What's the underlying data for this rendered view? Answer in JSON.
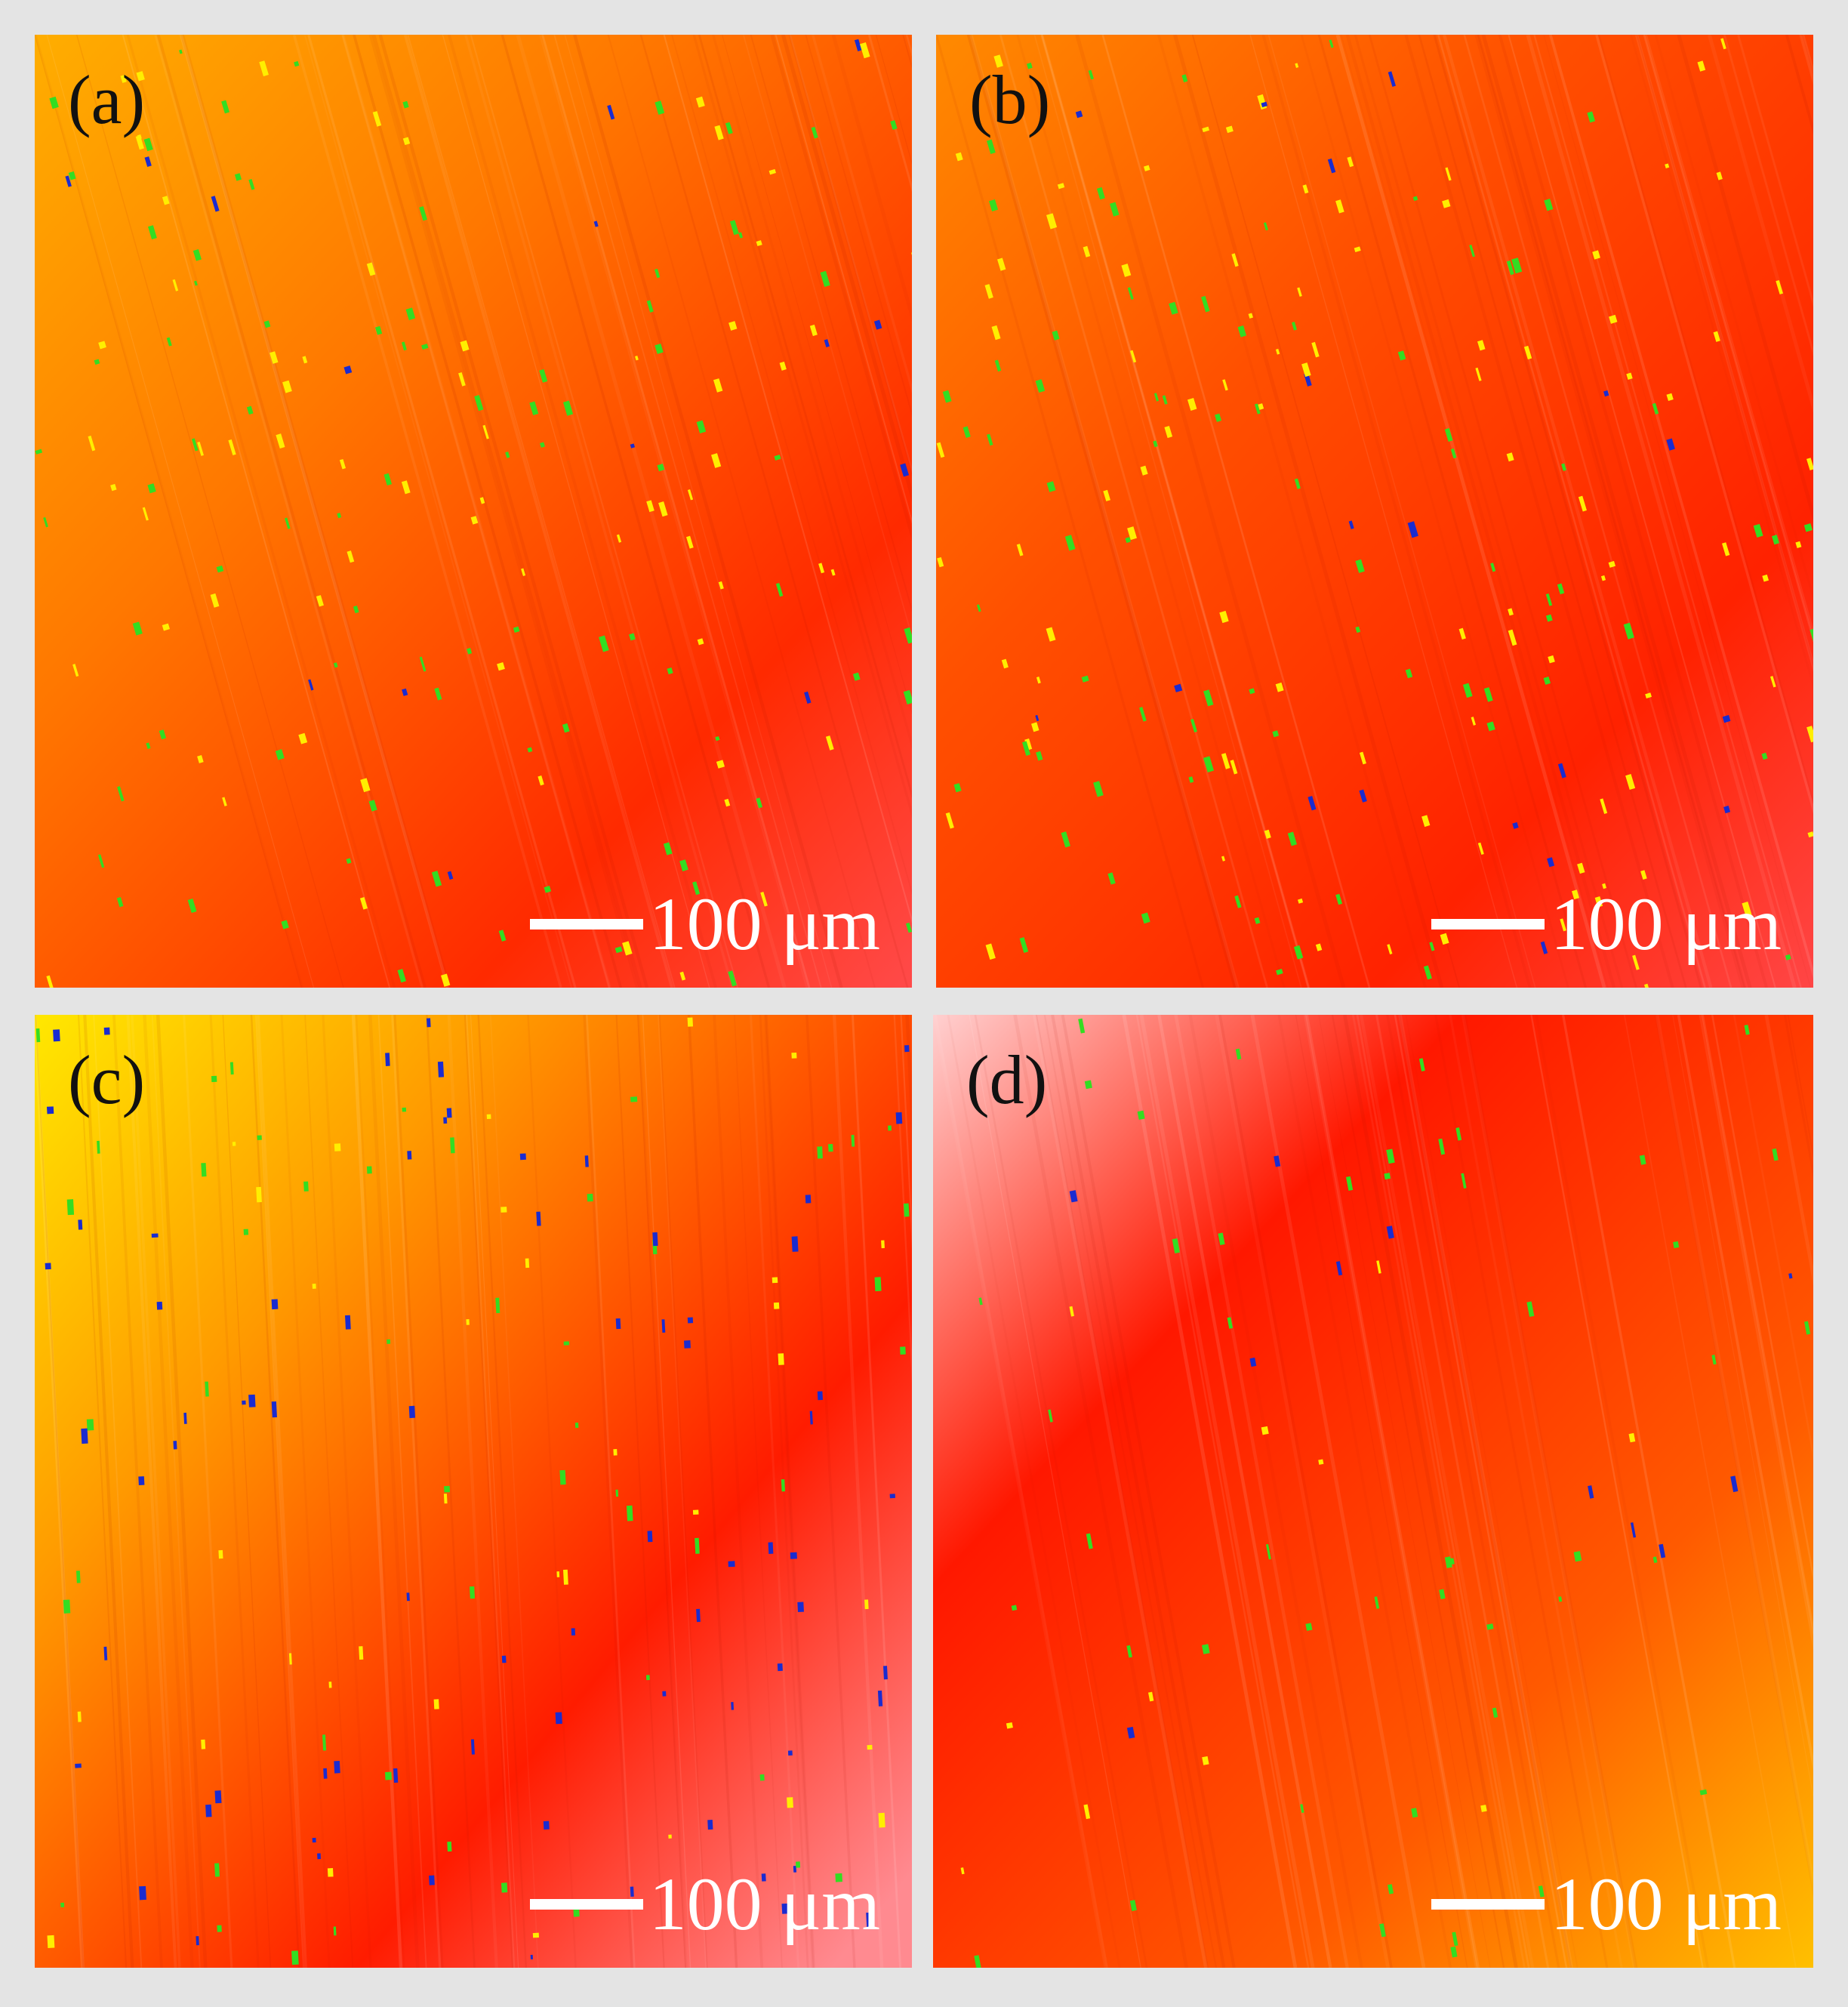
{
  "figure": {
    "panels": [
      {
        "id": "a",
        "label": "(a)",
        "scale_text": "100 μm",
        "gradient": [
          "#ffae00",
          "#ff7800",
          "#ff2a00",
          "#ff1a10"
        ]
      },
      {
        "id": "b",
        "label": "(b)",
        "scale_text": "100 μm",
        "gradient": [
          "#ff8a00",
          "#ff5a00",
          "#ff2200",
          "#ff3a3a"
        ]
      },
      {
        "id": "c",
        "label": "(c)",
        "scale_text": "100 μm",
        "gradient": [
          "#ffe800",
          "#ff9a00",
          "#ff1c00",
          "#ff7a80"
        ]
      },
      {
        "id": "d",
        "label": "(d)",
        "scale_text": "100 μm",
        "gradient": [
          "#ffd0d0",
          "#ff1800",
          "#ff5a00",
          "#ffc000"
        ]
      }
    ],
    "colors": {
      "background": "#e4e4e4",
      "speck_green": "#33dd22",
      "speck_yellow": "#ffee00",
      "speck_blue": "#1a2bd0",
      "scale_bar": "#ffffff"
    }
  }
}
